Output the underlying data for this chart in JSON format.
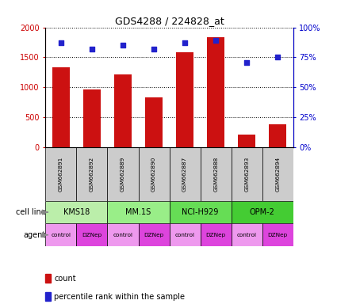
{
  "title": "GDS4288 / 224828_at",
  "samples": [
    "GSM662891",
    "GSM662892",
    "GSM662889",
    "GSM662890",
    "GSM662887",
    "GSM662888",
    "GSM662893",
    "GSM662894"
  ],
  "counts": [
    1340,
    960,
    1220,
    840,
    1590,
    1840,
    210,
    380
  ],
  "percentile_ranks": [
    87,
    82,
    85,
    82,
    87,
    89,
    71,
    75
  ],
  "ylim_left": [
    0,
    2000
  ],
  "ylim_right": [
    0,
    100
  ],
  "yticks_left": [
    0,
    500,
    1000,
    1500,
    2000
  ],
  "yticks_right": [
    0,
    25,
    50,
    75,
    100
  ],
  "ytick_labels_right": [
    "0%",
    "25%",
    "50%",
    "75%",
    "100%"
  ],
  "bar_color": "#cc1111",
  "scatter_color": "#2222cc",
  "cell_lines": [
    {
      "label": "KMS18",
      "cols": [
        0,
        1
      ],
      "color": "#bbeeaa"
    },
    {
      "label": "MM.1S",
      "cols": [
        2,
        3
      ],
      "color": "#99ee88"
    },
    {
      "label": "NCI-H929",
      "cols": [
        4,
        5
      ],
      "color": "#66dd55"
    },
    {
      "label": "OPM-2",
      "cols": [
        6,
        7
      ],
      "color": "#44cc33"
    }
  ],
  "agents": [
    "control",
    "DZNep",
    "control",
    "DZNep",
    "control",
    "DZNep",
    "control",
    "DZNep"
  ],
  "agent_control_color": "#ee99ee",
  "agent_dznep_color": "#dd44dd",
  "sample_header_color": "#cccccc",
  "legend_count_color": "#cc1111",
  "legend_percentile_color": "#2222cc",
  "label_arrow_color": "#888888"
}
